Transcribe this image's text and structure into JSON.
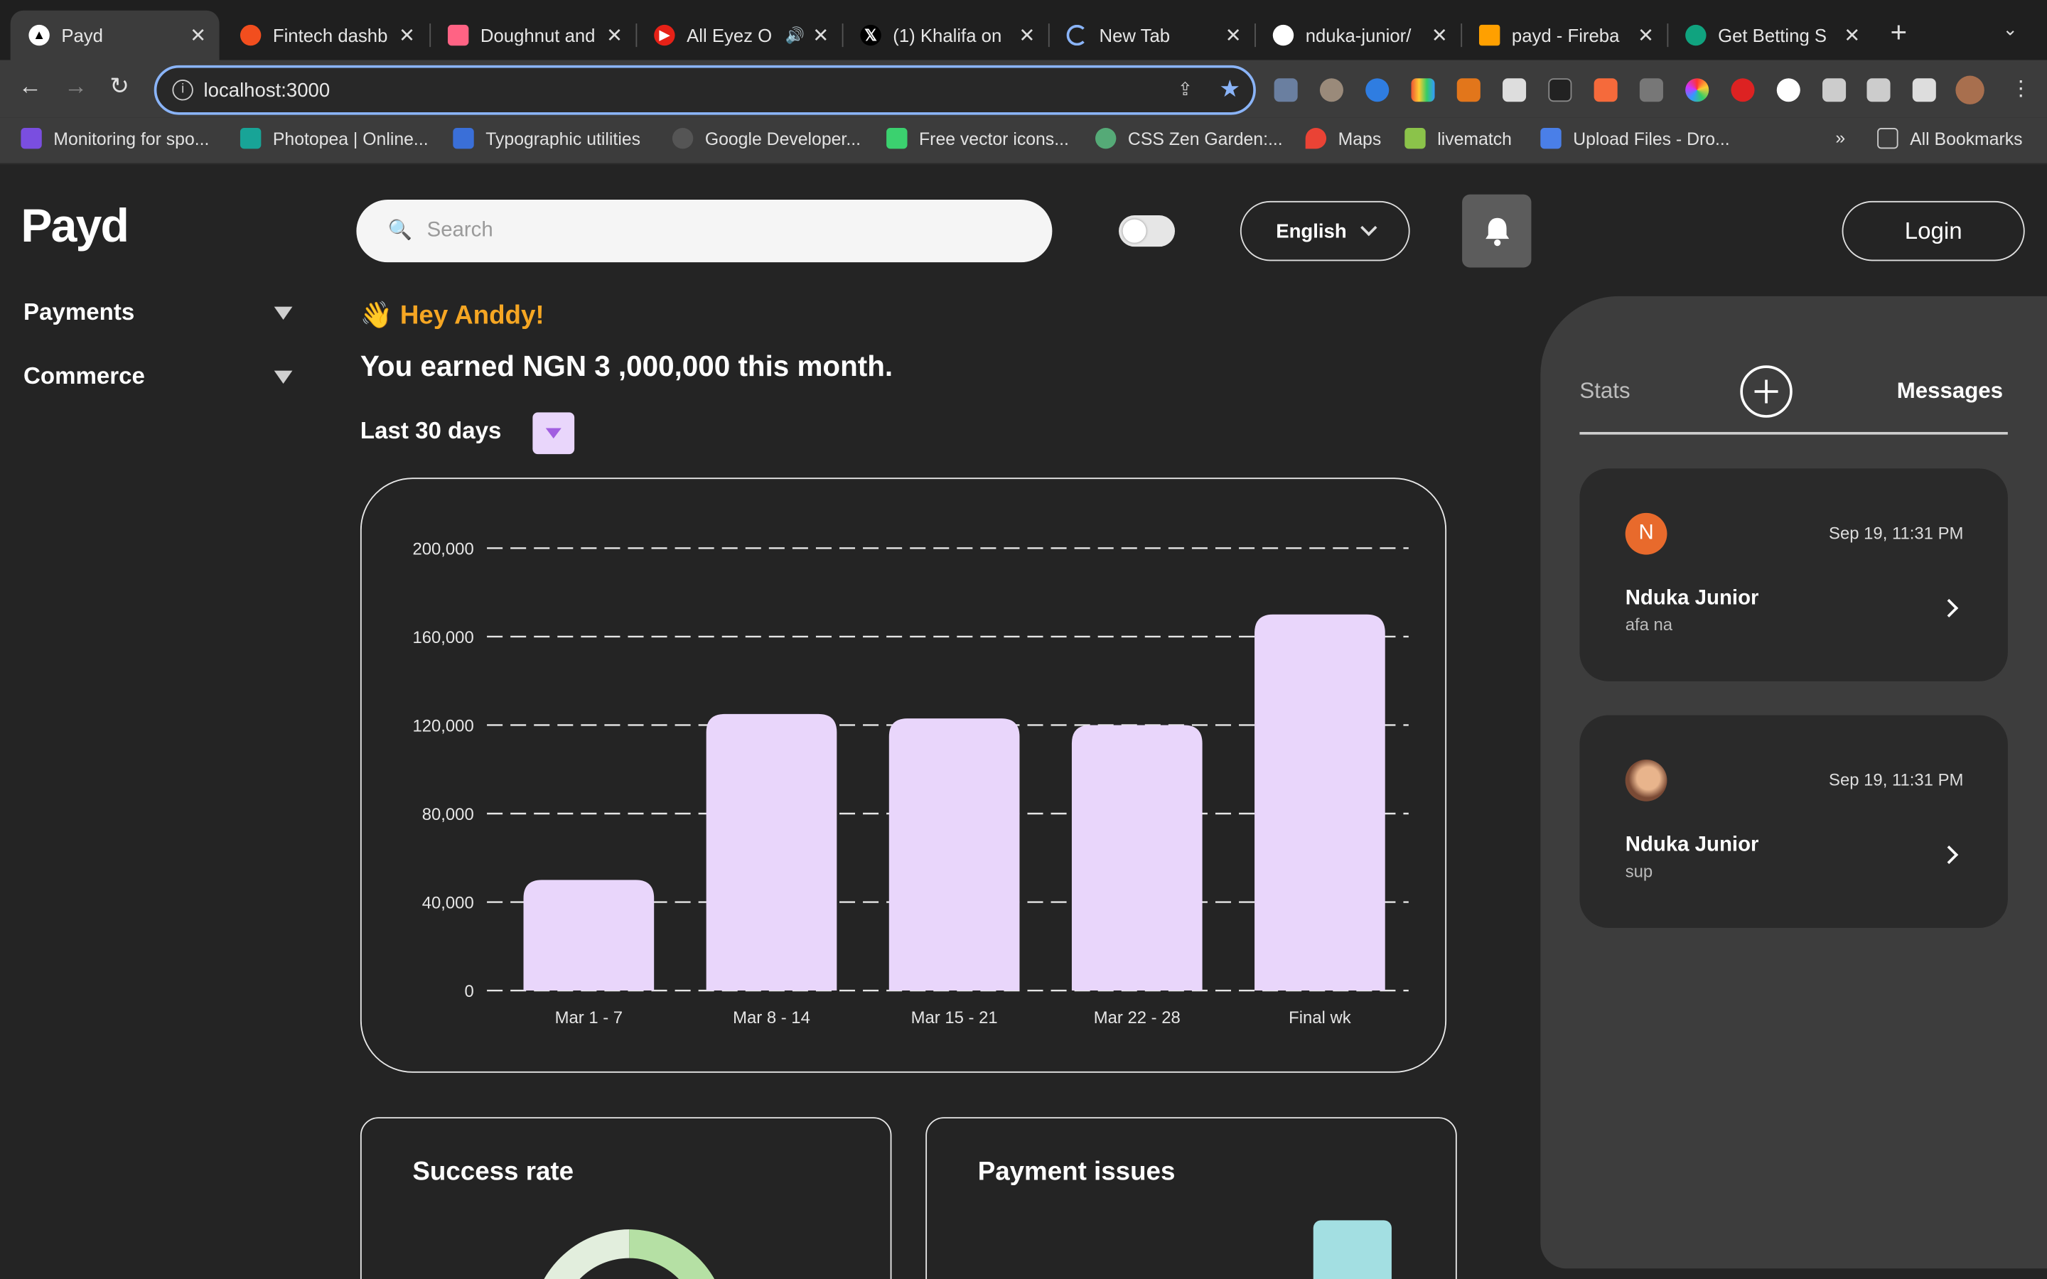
{
  "browser": {
    "tabs": [
      {
        "title": "Payd",
        "active": true
      },
      {
        "title": "Fintech dashb"
      },
      {
        "title": "Doughnut and"
      },
      {
        "title": "All Eyez O"
      },
      {
        "title": "(1) Khalifa on"
      },
      {
        "title": "New Tab"
      },
      {
        "title": "nduka-junior/"
      },
      {
        "title": "payd - Fireba"
      },
      {
        "title": "Get Betting S"
      }
    ],
    "url": "localhost:3000",
    "bookmarks": [
      "Monitoring for spo...",
      "Photopea | Online...",
      "Typographic utilities",
      "Google Developer...",
      "Free vector icons...",
      "CSS Zen Garden:...",
      "Maps",
      "livematch",
      "Upload Files - Dro..."
    ],
    "bookmarks_overflow": "»",
    "all_bookmarks": "All Bookmarks"
  },
  "app": {
    "logo": "Payd",
    "sidebar": [
      {
        "label": "Payments"
      },
      {
        "label": "Commerce"
      }
    ],
    "search_placeholder": "Search",
    "language": "English",
    "login": "Login",
    "greeting_emoji": "👋",
    "greeting": "Hey Anddy!",
    "earnings": "You earned NGN 3 ,000,000 this month.",
    "period": "Last 30 days",
    "cards": [
      {
        "title": "Success rate"
      },
      {
        "title": "Payment issues"
      }
    ]
  },
  "colors": {
    "accent": "#e9d6fb",
    "greeting": "#f5a623",
    "background": "#242424",
    "panel": "#3d3d3d"
  },
  "chart_data": {
    "type": "bar",
    "categories": [
      "Mar 1 - 7",
      "Mar 8 - 14",
      "Mar 15 - 21",
      "Mar 22 - 28",
      "Final wk"
    ],
    "values": [
      50000,
      125000,
      123000,
      120000,
      170000
    ],
    "yticks": [
      "0",
      "40,000",
      "80,000",
      "120,000",
      "160,000",
      "200,000"
    ],
    "ylim": [
      0,
      200000
    ],
    "grid": "dashed",
    "bar_color": "#e9d6fb"
  },
  "panel": {
    "tab_stats": "Stats",
    "tab_messages": "Messages",
    "messages": [
      {
        "initial": "N",
        "time": "Sep 19, 11:31 PM",
        "name": "Nduka Junior",
        "preview": "afa na"
      },
      {
        "initial": "",
        "time": "Sep 19, 11:31 PM",
        "name": "Nduka Junior",
        "preview": "sup"
      }
    ]
  }
}
